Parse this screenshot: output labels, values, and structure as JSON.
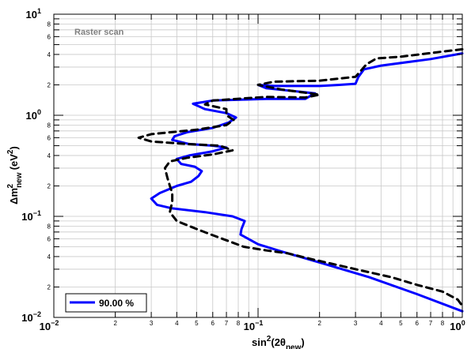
{
  "chart_data": {
    "type": "line",
    "annotation": "Raster scan",
    "xlabel": "sin²(2θnew)",
    "ylabel": "Δm²new (eV²)",
    "x_scale": "log",
    "y_scale": "log",
    "xlim": [
      0.01,
      1
    ],
    "ylim": [
      0.01,
      10
    ],
    "grid": true,
    "x_major_ticks": [
      {
        "value": 0.01,
        "base": "10",
        "exp": "−2"
      },
      {
        "value": 0.1,
        "base": "10",
        "exp": "−1"
      },
      {
        "value": 1,
        "base": "10",
        "exp": "0"
      }
    ],
    "y_major_ticks": [
      {
        "value": 0.01,
        "base": "10",
        "exp": "−2"
      },
      {
        "value": 0.1,
        "base": "10",
        "exp": "−1"
      },
      {
        "value": 1,
        "base": "10",
        "exp": "0"
      },
      {
        "value": 10,
        "base": "10",
        "exp": "1"
      }
    ],
    "x_minor_ticks": [
      {
        "value": 0.02,
        "label": "2"
      },
      {
        "value": 0.03,
        "label": "3"
      },
      {
        "value": 0.04,
        "label": "4"
      },
      {
        "value": 0.05,
        "label": "5"
      },
      {
        "value": 0.06,
        "label": "6"
      },
      {
        "value": 0.07,
        "label": "7"
      },
      {
        "value": 0.08,
        "label": "8"
      },
      {
        "value": 0.2,
        "label": "2"
      },
      {
        "value": 0.3,
        "label": "3"
      },
      {
        "value": 0.4,
        "label": "4"
      },
      {
        "value": 0.5,
        "label": "5"
      },
      {
        "value": 0.6,
        "label": "6"
      },
      {
        "value": 0.7,
        "label": "7"
      },
      {
        "value": 0.8,
        "label": "8"
      }
    ],
    "y_minor_ticks": [
      {
        "value": 0.02,
        "label": "2"
      },
      {
        "value": 0.04,
        "label": "4"
      },
      {
        "value": 0.06,
        "label": "6"
      },
      {
        "value": 0.08,
        "label": "8"
      },
      {
        "value": 0.2,
        "label": "2"
      },
      {
        "value": 0.4,
        "label": "4"
      },
      {
        "value": 0.6,
        "label": "6"
      },
      {
        "value": 0.8,
        "label": "8"
      },
      {
        "value": 2,
        "label": "2"
      },
      {
        "value": 4,
        "label": "4"
      },
      {
        "value": 6,
        "label": "6"
      },
      {
        "value": 8,
        "label": "8"
      }
    ],
    "series": [
      {
        "name": "90.00 %",
        "color": "#0000ff",
        "style": "solid",
        "points": [
          [
            1.0,
            4.1
          ],
          [
            0.7,
            3.6
          ],
          [
            0.4,
            3.1
          ],
          [
            0.33,
            2.85
          ],
          [
            0.31,
            2.4
          ],
          [
            0.3,
            2.05
          ],
          [
            0.25,
            2.0
          ],
          [
            0.2,
            1.95
          ],
          [
            0.12,
            1.95
          ],
          [
            0.1,
            2.0
          ],
          [
            0.11,
            1.85
          ],
          [
            0.19,
            1.65
          ],
          [
            0.17,
            1.45
          ],
          [
            0.11,
            1.45
          ],
          [
            0.06,
            1.4
          ],
          [
            0.048,
            1.3
          ],
          [
            0.055,
            1.15
          ],
          [
            0.07,
            1.05
          ],
          [
            0.078,
            0.95
          ],
          [
            0.072,
            0.85
          ],
          [
            0.06,
            0.75
          ],
          [
            0.045,
            0.68
          ],
          [
            0.039,
            0.62
          ],
          [
            0.038,
            0.57
          ],
          [
            0.046,
            0.52
          ],
          [
            0.06,
            0.5
          ],
          [
            0.07,
            0.48
          ],
          [
            0.06,
            0.44
          ],
          [
            0.046,
            0.4
          ],
          [
            0.04,
            0.37
          ],
          [
            0.042,
            0.33
          ],
          [
            0.049,
            0.31
          ],
          [
            0.053,
            0.28
          ],
          [
            0.051,
            0.25
          ],
          [
            0.047,
            0.22
          ],
          [
            0.04,
            0.2
          ],
          [
            0.033,
            0.17
          ],
          [
            0.03,
            0.15
          ],
          [
            0.032,
            0.13
          ],
          [
            0.038,
            0.12
          ],
          [
            0.055,
            0.11
          ],
          [
            0.075,
            0.1
          ],
          [
            0.086,
            0.09
          ],
          [
            0.083,
            0.075
          ],
          [
            0.082,
            0.066
          ],
          [
            0.1,
            0.053
          ],
          [
            0.13,
            0.045
          ],
          [
            0.2,
            0.035
          ],
          [
            0.35,
            0.025
          ],
          [
            0.6,
            0.017
          ],
          [
            1.0,
            0.0115
          ]
        ]
      },
      {
        "name": "",
        "color": "#000000",
        "style": "dashed",
        "points": [
          [
            1.0,
            4.5
          ],
          [
            0.75,
            4.2
          ],
          [
            0.5,
            3.8
          ],
          [
            0.38,
            3.65
          ],
          [
            0.34,
            3.2
          ],
          [
            0.3,
            2.4
          ],
          [
            0.2,
            2.2
          ],
          [
            0.12,
            2.15
          ],
          [
            0.1,
            2.0
          ],
          [
            0.13,
            1.8
          ],
          [
            0.2,
            1.6
          ],
          [
            0.17,
            1.5
          ],
          [
            0.11,
            1.52
          ],
          [
            0.06,
            1.4
          ],
          [
            0.055,
            1.28
          ],
          [
            0.07,
            1.15
          ],
          [
            0.07,
            1.0
          ],
          [
            0.076,
            0.9
          ],
          [
            0.07,
            0.8
          ],
          [
            0.05,
            0.72
          ],
          [
            0.03,
            0.65
          ],
          [
            0.026,
            0.6
          ],
          [
            0.03,
            0.55
          ],
          [
            0.045,
            0.52
          ],
          [
            0.065,
            0.5
          ],
          [
            0.075,
            0.45
          ],
          [
            0.06,
            0.41
          ],
          [
            0.045,
            0.38
          ],
          [
            0.037,
            0.35
          ],
          [
            0.035,
            0.3
          ],
          [
            0.036,
            0.24
          ],
          [
            0.037,
            0.2
          ],
          [
            0.038,
            0.17
          ],
          [
            0.038,
            0.14
          ],
          [
            0.037,
            0.11
          ],
          [
            0.04,
            0.09
          ],
          [
            0.05,
            0.075
          ],
          [
            0.06,
            0.065
          ],
          [
            0.07,
            0.058
          ],
          [
            0.085,
            0.05
          ],
          [
            0.11,
            0.046
          ],
          [
            0.14,
            0.043
          ],
          [
            0.18,
            0.038
          ],
          [
            0.3,
            0.03
          ],
          [
            0.45,
            0.025
          ],
          [
            0.6,
            0.021
          ],
          [
            0.8,
            0.018
          ],
          [
            0.95,
            0.015
          ],
          [
            1.0,
            0.013
          ]
        ]
      }
    ],
    "legend": {
      "position": "bottom-left",
      "entries": [
        "90.00 %"
      ]
    }
  }
}
